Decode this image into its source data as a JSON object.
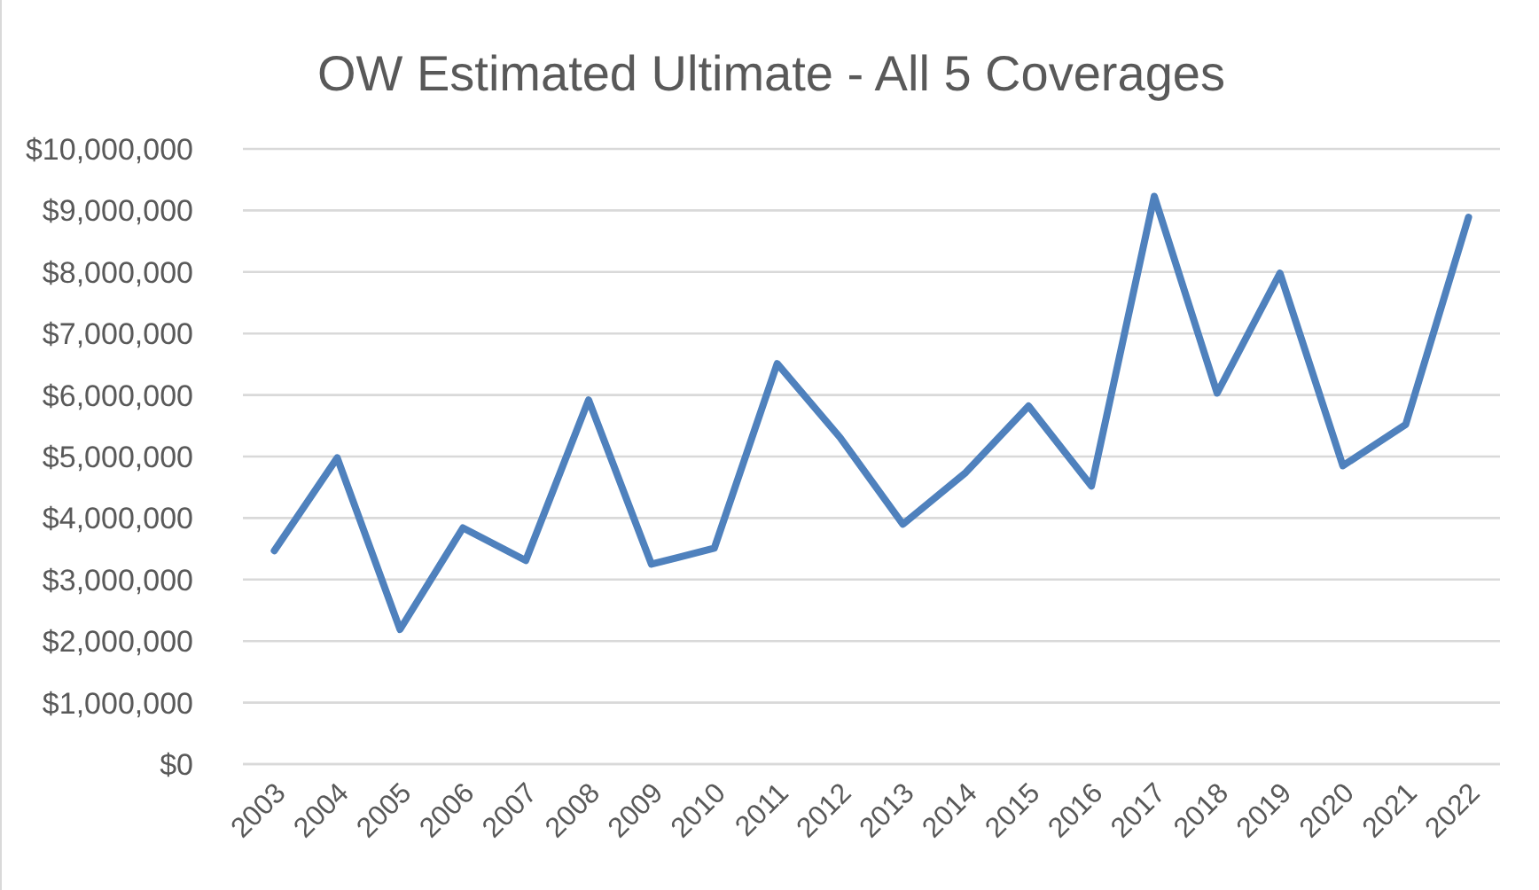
{
  "chart_data": {
    "type": "line",
    "title": "OW Estimated Ultimate - All 5 Coverages",
    "categories": [
      "2003",
      "2004",
      "2005",
      "2006",
      "2007",
      "2008",
      "2009",
      "2010",
      "2011",
      "2012",
      "2013",
      "2014",
      "2015",
      "2016",
      "2017",
      "2018",
      "2019",
      "2020",
      "2021",
      "2022"
    ],
    "series": [
      {
        "color": "#4f81bd",
        "values": [
          3470000,
          4980000,
          2190000,
          3840000,
          3310000,
          5920000,
          3250000,
          3510000,
          6510000,
          5310000,
          3900000,
          4740000,
          5820000,
          4520000,
          9230000,
          6030000,
          7980000,
          4850000,
          5520000,
          8890000
        ]
      }
    ],
    "ylim": [
      0,
      10000000
    ],
    "yticks": [
      {
        "value": 0,
        "label": "$0"
      },
      {
        "value": 1000000,
        "label": "$1,000,000"
      },
      {
        "value": 2000000,
        "label": "$2,000,000"
      },
      {
        "value": 3000000,
        "label": "$3,000,000"
      },
      {
        "value": 4000000,
        "label": "$4,000,000"
      },
      {
        "value": 5000000,
        "label": "$5,000,000"
      },
      {
        "value": 6000000,
        "label": "$6,000,000"
      },
      {
        "value": 7000000,
        "label": "$7,000,000"
      },
      {
        "value": 8000000,
        "label": "$8,000,000"
      },
      {
        "value": 9000000,
        "label": "$9,000,000"
      },
      {
        "value": 10000000,
        "label": "$10,000,000"
      }
    ],
    "grid": "y",
    "marker": "none"
  }
}
